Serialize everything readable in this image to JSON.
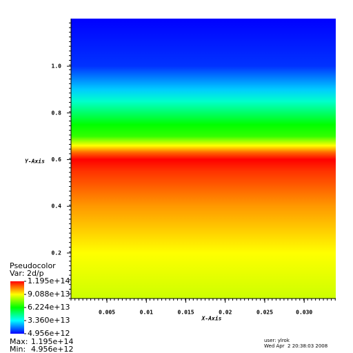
{
  "chart_data": {
    "type": "pseudocolor",
    "x_label": "X-Axis",
    "y_label": "Y-Axis",
    "xlim": [
      0.00045,
      0.034
    ],
    "ylim": [
      0.005,
      1.204
    ],
    "xticks": [
      0.005,
      0.01,
      0.015,
      0.02,
      0.025,
      {
        "value": 0.03,
        "label": "0.030"
      }
    ],
    "yticks": [
      0.2,
      0.4,
      0.6,
      0.8,
      {
        "value": 1,
        "label": "1.0"
      }
    ],
    "y": [
      0.005,
      0.2,
      0.4,
      0.55,
      0.6,
      0.63,
      0.66,
      0.7,
      0.75,
      0.8,
      0.85,
      0.9,
      1.0,
      1.204
    ],
    "values": [
      85140000000000.0,
      90870000000000.0,
      102300000000000.0,
      113800000000000.0,
      119500000000000.0,
      108000000000000.0,
      90870000000000.0,
      67960000000000.0,
      62230000000000.0,
      50780000000000.0,
      39320000000000.0,
      27870000000000.0,
      10680000000000.0,
      4956000000000.0
    ],
    "legend": {
      "title": "Pseudocolor",
      "variable": "Var: 2d/p",
      "ticks": [
        {
          "value": 119500000000000.0,
          "label": "1.195e+14"
        },
        {
          "value": 90880000000000.0,
          "label": "9.088e+13"
        },
        {
          "value": 62240000000000.0,
          "label": "6.224e+13"
        },
        {
          "value": 33600000000000.0,
          "label": "3.360e+13"
        },
        {
          "value": 4956000000000.0,
          "label": "4.956e+12"
        }
      ],
      "max_label": "Max:",
      "max": {
        "value": 119500000000000.0,
        "label": "1.195e+14"
      },
      "min_label": "Min:",
      "min": {
        "value": 4956000000000.0,
        "label": "4.956e+12"
      }
    },
    "user": "user: ylrok",
    "date": "Wed Apr  2 20:38:03 2008"
  }
}
